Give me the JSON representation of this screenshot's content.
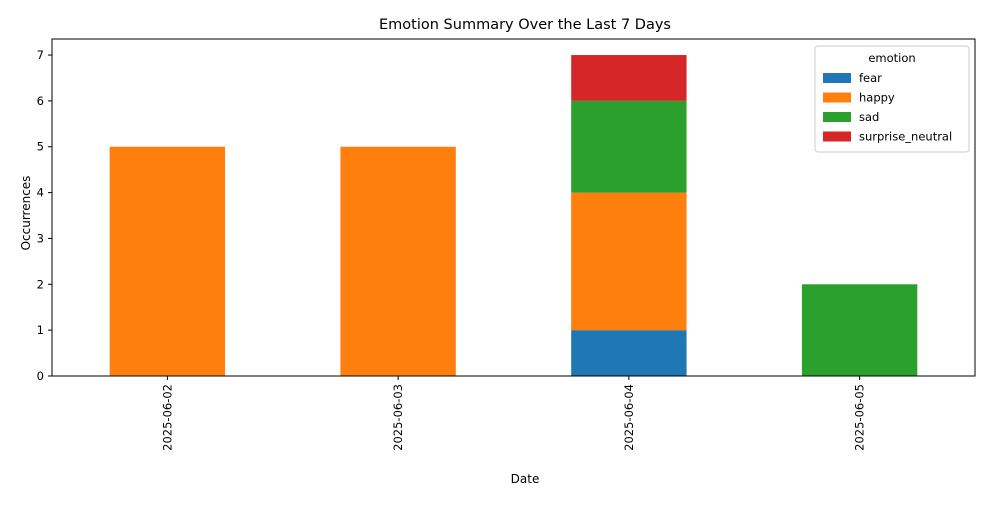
{
  "chart_data": {
    "type": "bar",
    "stacked": true,
    "title": "Emotion Summary Over the Last 7 Days",
    "xlabel": "Date",
    "ylabel": "Occurrences",
    "categories": [
      "2025-06-02",
      "2025-06-03",
      "2025-06-04",
      "2025-06-05"
    ],
    "ylim": [
      0,
      7.35
    ],
    "yticks": [
      0,
      1,
      2,
      3,
      4,
      5,
      6,
      7
    ],
    "grid": false,
    "legend": {
      "title": "emotion",
      "placement": "top-right"
    },
    "series": [
      {
        "name": "fear",
        "color": "#1f77b4",
        "values": [
          0,
          0,
          1,
          0
        ]
      },
      {
        "name": "happy",
        "color": "#ff7f0e",
        "values": [
          5,
          5,
          3,
          0
        ]
      },
      {
        "name": "sad",
        "color": "#2ca02c",
        "values": [
          0,
          0,
          2,
          2
        ]
      },
      {
        "name": "surprise_neutral",
        "color": "#d62728",
        "values": [
          0,
          0,
          1,
          0
        ]
      }
    ]
  }
}
